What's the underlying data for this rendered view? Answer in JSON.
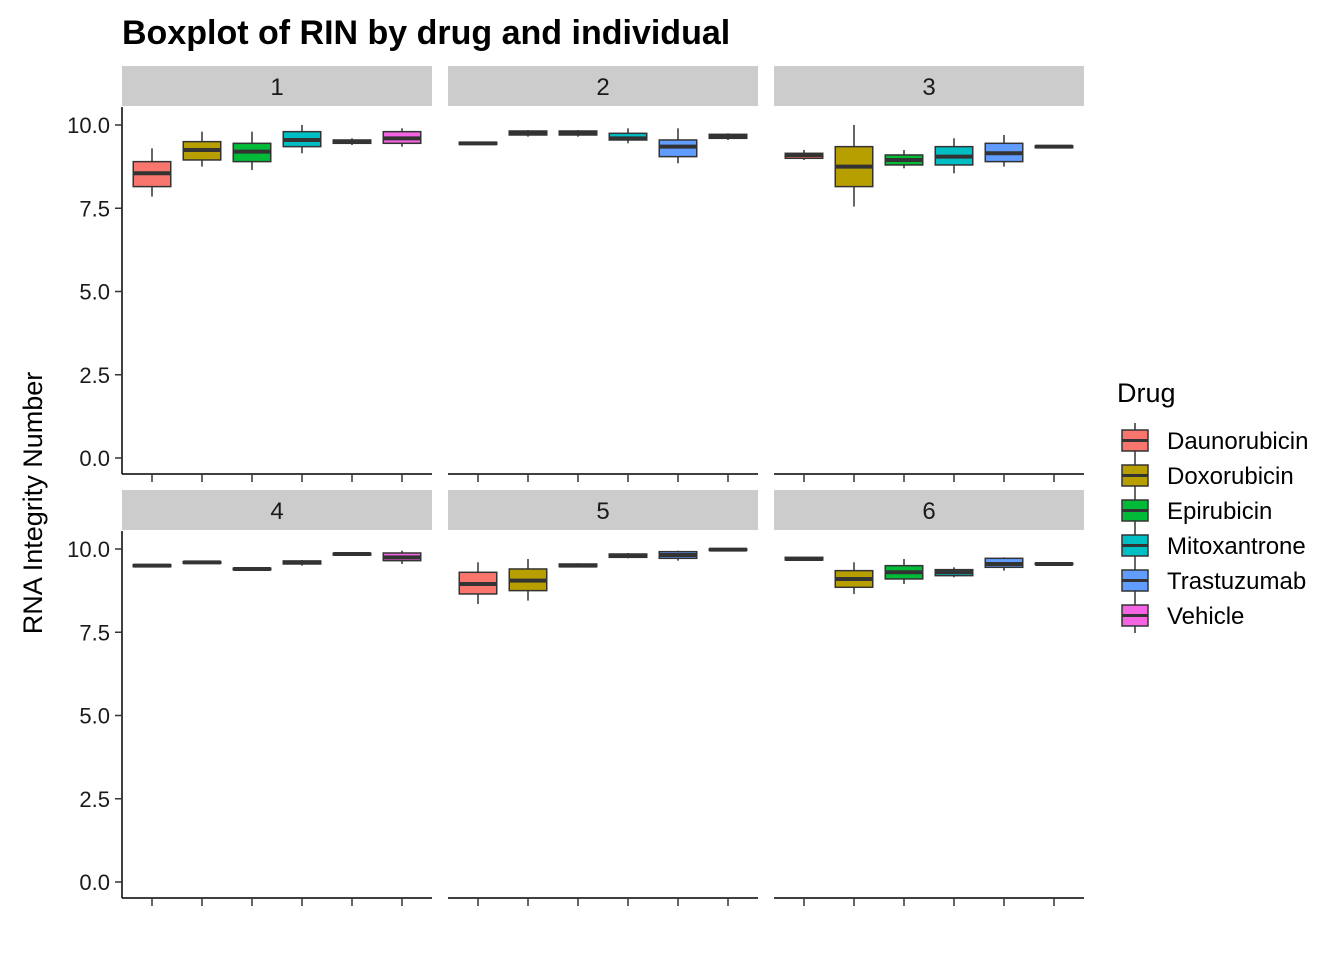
{
  "chart_data": {
    "type": "boxplot",
    "title": "Boxplot of RIN by drug and individual",
    "xlabel": "",
    "ylabel": "RNA Integrity Number",
    "ylim": [
      0,
      10
    ],
    "yticks": [
      "0.0",
      "2.5",
      "5.0",
      "7.5",
      "10.0"
    ],
    "grid": false,
    "legend_title": "Drug",
    "legend_position": "right",
    "categories": [
      "Daunorubicin",
      "Doxorubicin",
      "Epirubicin",
      "Mitoxantrone",
      "Trastuzumab",
      "Vehicle"
    ],
    "colors": [
      "#F8766D",
      "#B79F00",
      "#00BA38",
      "#00BFC4",
      "#619CFF",
      "#F564E3"
    ],
    "facets": [
      {
        "label": "1",
        "boxes": [
          {
            "min": 7.85,
            "q1": 8.15,
            "median": 8.55,
            "q3": 8.9,
            "max": 9.3
          },
          {
            "min": 8.75,
            "q1": 8.95,
            "median": 9.25,
            "q3": 9.5,
            "max": 9.8
          },
          {
            "min": 8.65,
            "q1": 8.9,
            "median": 9.2,
            "q3": 9.45,
            "max": 9.8
          },
          {
            "min": 9.15,
            "q1": 9.35,
            "median": 9.55,
            "q3": 9.8,
            "max": 10.0
          },
          {
            "min": 9.4,
            "q1": 9.45,
            "median": 9.5,
            "q3": 9.55,
            "max": 9.6
          },
          {
            "min": 9.35,
            "q1": 9.45,
            "median": 9.6,
            "q3": 9.8,
            "max": 9.9
          }
        ]
      },
      {
        "label": "2",
        "boxes": [
          {
            "min": 9.4,
            "q1": 9.42,
            "median": 9.45,
            "q3": 9.48,
            "max": 9.5
          },
          {
            "min": 9.65,
            "q1": 9.7,
            "median": 9.75,
            "q3": 9.82,
            "max": 9.85
          },
          {
            "min": 9.65,
            "q1": 9.7,
            "median": 9.75,
            "q3": 9.82,
            "max": 9.85
          },
          {
            "min": 9.45,
            "q1": 9.55,
            "median": 9.6,
            "q3": 9.75,
            "max": 9.9
          },
          {
            "min": 8.85,
            "q1": 9.05,
            "median": 9.35,
            "q3": 9.55,
            "max": 9.9
          },
          {
            "min": 9.55,
            "q1": 9.6,
            "median": 9.65,
            "q3": 9.72,
            "max": 9.75
          }
        ]
      },
      {
        "label": "3",
        "boxes": [
          {
            "min": 8.95,
            "q1": 9.0,
            "median": 9.1,
            "q3": 9.15,
            "max": 9.25
          },
          {
            "min": 7.55,
            "q1": 8.15,
            "median": 8.75,
            "q3": 9.35,
            "max": 10.0
          },
          {
            "min": 8.7,
            "q1": 8.8,
            "median": 8.95,
            "q3": 9.1,
            "max": 9.25
          },
          {
            "min": 8.55,
            "q1": 8.8,
            "median": 9.05,
            "q3": 9.35,
            "max": 9.6
          },
          {
            "min": 8.75,
            "q1": 8.9,
            "median": 9.15,
            "q3": 9.45,
            "max": 9.7
          },
          {
            "min": 9.3,
            "q1": 9.32,
            "median": 9.35,
            "q3": 9.37,
            "max": 9.38
          }
        ]
      },
      {
        "label": "4",
        "boxes": [
          {
            "min": 9.45,
            "q1": 9.47,
            "median": 9.5,
            "q3": 9.53,
            "max": 9.55
          },
          {
            "min": 9.55,
            "q1": 9.57,
            "median": 9.6,
            "q3": 9.62,
            "max": 9.63
          },
          {
            "min": 9.35,
            "q1": 9.38,
            "median": 9.4,
            "q3": 9.42,
            "max": 9.45
          },
          {
            "min": 9.5,
            "q1": 9.55,
            "median": 9.6,
            "q3": 9.64,
            "max": 9.67
          },
          {
            "min": 9.8,
            "q1": 9.82,
            "median": 9.85,
            "q3": 9.87,
            "max": 9.88
          },
          {
            "min": 9.55,
            "q1": 9.65,
            "median": 9.75,
            "q3": 9.88,
            "max": 9.95
          }
        ]
      },
      {
        "label": "5",
        "boxes": [
          {
            "min": 8.35,
            "q1": 8.65,
            "median": 8.95,
            "q3": 9.3,
            "max": 9.6
          },
          {
            "min": 8.45,
            "q1": 8.75,
            "median": 9.05,
            "q3": 9.4,
            "max": 9.7
          },
          {
            "min": 9.45,
            "q1": 9.47,
            "median": 9.5,
            "q3": 9.55,
            "max": 9.57
          },
          {
            "min": 9.72,
            "q1": 9.75,
            "median": 9.8,
            "q3": 9.85,
            "max": 9.88
          },
          {
            "min": 9.65,
            "q1": 9.72,
            "median": 9.82,
            "q3": 9.92,
            "max": 9.95
          },
          {
            "min": 9.95,
            "q1": 9.96,
            "median": 9.98,
            "q3": 10.0,
            "max": 10.0
          }
        ]
      },
      {
        "label": "6",
        "boxes": [
          {
            "min": 9.65,
            "q1": 9.67,
            "median": 9.7,
            "q3": 9.75,
            "max": 9.77
          },
          {
            "min": 8.65,
            "q1": 8.85,
            "median": 9.1,
            "q3": 9.35,
            "max": 9.6
          },
          {
            "min": 8.95,
            "q1": 9.1,
            "median": 9.3,
            "q3": 9.5,
            "max": 9.7
          },
          {
            "min": 9.15,
            "q1": 9.2,
            "median": 9.3,
            "q3": 9.38,
            "max": 9.45
          },
          {
            "min": 9.35,
            "q1": 9.45,
            "median": 9.55,
            "q3": 9.72,
            "max": 9.75
          },
          {
            "min": 9.52,
            "q1": 9.54,
            "median": 9.55,
            "q3": 9.57,
            "max": 9.58
          }
        ]
      }
    ]
  }
}
